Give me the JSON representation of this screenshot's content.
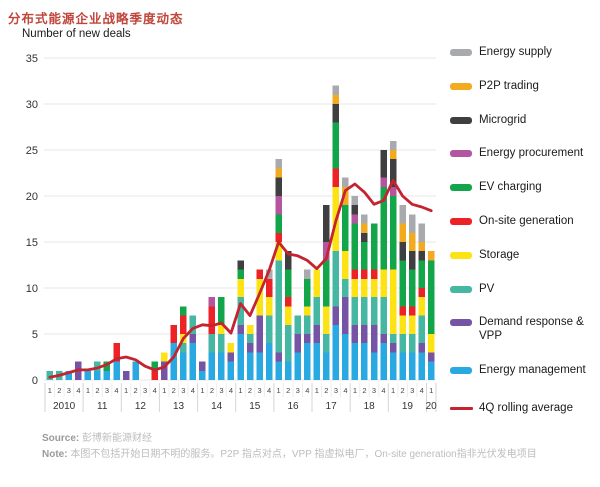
{
  "page": {
    "title": "分布式能源企业战略季度动态",
    "subtitle": "Number of new deals"
  },
  "footer": {
    "source_label": "Source:",
    "source_text": "彭博新能源财经",
    "note_label": "Note:",
    "note_text": "本图不包括开始日期不明的服务。P2P 指点对点，VPP 指虚拟电厂，On-site generation指非光伏发电项目"
  },
  "chart_data": {
    "type": "bar",
    "stacked": true,
    "title": "分布式能源企业战略季度动态",
    "ylabel": "Number of new deals",
    "xlabel": "",
    "ylim": [
      0,
      35
    ],
    "yticks": [
      0,
      5,
      10,
      15,
      20,
      25,
      30,
      35
    ],
    "grid": true,
    "legend_position": "right",
    "quarter_labels": [
      "1",
      "2",
      "3",
      "4",
      "1",
      "2",
      "3",
      "4",
      "1",
      "2",
      "3",
      "4",
      "1",
      "2",
      "3",
      "4",
      "1",
      "2",
      "3",
      "4",
      "1",
      "2",
      "3",
      "4",
      "1",
      "2",
      "3",
      "4",
      "1",
      "2",
      "3",
      "4",
      "1",
      "2",
      "3",
      "4",
      "1",
      "2",
      "3",
      "4",
      "1"
    ],
    "year_groups": [
      {
        "label": "2010",
        "quarters": 4
      },
      {
        "label": "11",
        "quarters": 4
      },
      {
        "label": "12",
        "quarters": 4
      },
      {
        "label": "13",
        "quarters": 4
      },
      {
        "label": "14",
        "quarters": 4
      },
      {
        "label": "15",
        "quarters": 4
      },
      {
        "label": "16",
        "quarters": 4
      },
      {
        "label": "17",
        "quarters": 4
      },
      {
        "label": "18",
        "quarters": 4
      },
      {
        "label": "19",
        "quarters": 4
      },
      {
        "label": "20",
        "quarters": 1
      }
    ],
    "series": [
      {
        "name": "Energy management",
        "color": "#29a9e1",
        "values": [
          0,
          0,
          1,
          0,
          1,
          1,
          1,
          2,
          0,
          2,
          0,
          0,
          0,
          4,
          3,
          4,
          1,
          3,
          3,
          2,
          5,
          3,
          3,
          4,
          2,
          2,
          3,
          4,
          4,
          3,
          6,
          5,
          4,
          4,
          3,
          4,
          3,
          3,
          3,
          3,
          2
        ]
      },
      {
        "name": "Demand response & VPP",
        "color": "#7553a5",
        "values": [
          0,
          0,
          0,
          2,
          0,
          0,
          0,
          0,
          1,
          0,
          0,
          0,
          2,
          0,
          0,
          1,
          1,
          0,
          0,
          1,
          1,
          1,
          4,
          0,
          1,
          0,
          2,
          1,
          2,
          0,
          2,
          4,
          2,
          2,
          3,
          1,
          1,
          0,
          0,
          1,
          1
        ]
      },
      {
        "name": "PV",
        "color": "#45b7a3",
        "values": [
          1,
          1,
          0,
          0,
          0,
          1,
          0,
          0,
          0,
          0,
          0,
          0,
          0,
          0,
          1,
          2,
          0,
          2,
          2,
          0,
          3,
          1,
          0,
          3,
          10,
          4,
          2,
          2,
          3,
          2,
          6,
          2,
          3,
          3,
          3,
          4,
          1,
          2,
          2,
          3,
          0
        ]
      },
      {
        "name": "Storage",
        "color": "#fde314",
        "values": [
          0,
          0,
          0,
          0,
          0,
          0,
          0,
          0,
          0,
          0,
          0,
          0,
          1,
          0,
          1,
          0,
          0,
          0,
          1,
          1,
          2,
          1,
          4,
          2,
          2,
          2,
          0,
          1,
          3,
          3,
          7,
          3,
          2,
          2,
          2,
          3,
          7,
          2,
          2,
          2,
          2
        ]
      },
      {
        "name": "On-site generation",
        "color": "#ec2227",
        "values": [
          0,
          0,
          0,
          0,
          0,
          0,
          0,
          2,
          0,
          0,
          0,
          1,
          0,
          2,
          2,
          0,
          0,
          3,
          0,
          0,
          0,
          0,
          1,
          2,
          1,
          1,
          0,
          0,
          0,
          0,
          2,
          0,
          1,
          1,
          1,
          0,
          0,
          1,
          1,
          1,
          0
        ]
      },
      {
        "name": "EV charging",
        "color": "#13a549",
        "values": [
          0,
          0,
          0,
          0,
          0,
          0,
          1,
          0,
          0,
          0,
          0,
          1,
          0,
          0,
          1,
          0,
          0,
          0,
          3,
          0,
          1,
          0,
          0,
          0,
          2,
          3,
          0,
          3,
          0,
          5,
          5,
          5,
          5,
          3,
          5,
          9,
          8,
          5,
          4,
          3,
          8
        ]
      },
      {
        "name": "Energy procurement",
        "color": "#b4559f",
        "values": [
          0,
          0,
          0,
          0,
          0,
          0,
          0,
          0,
          0,
          0,
          0,
          0,
          0,
          0,
          0,
          0,
          0,
          1,
          0,
          0,
          0,
          0,
          0,
          0,
          2,
          0,
          0,
          0,
          0,
          2,
          0,
          0,
          1,
          0,
          0,
          1,
          1,
          0,
          0,
          0,
          0
        ]
      },
      {
        "name": "Microgrid",
        "color": "#3f3f41",
        "values": [
          0,
          0,
          0,
          0,
          0,
          0,
          0,
          0,
          0,
          0,
          0,
          0,
          0,
          0,
          0,
          0,
          0,
          0,
          0,
          0,
          1,
          0,
          0,
          0,
          2,
          2,
          0,
          0,
          0,
          4,
          2,
          0,
          1,
          1,
          0,
          3,
          3,
          2,
          2,
          1,
          0
        ]
      },
      {
        "name": "P2P trading",
        "color": "#f2ab1f",
        "values": [
          0,
          0,
          0,
          0,
          0,
          0,
          0,
          0,
          0,
          0,
          0,
          0,
          0,
          0,
          0,
          0,
          0,
          0,
          0,
          0,
          0,
          0,
          0,
          0,
          1,
          0,
          0,
          0,
          0,
          0,
          1,
          2,
          0,
          1,
          0,
          0,
          1,
          2,
          2,
          1,
          1
        ]
      },
      {
        "name": "Energy supply",
        "color": "#a8aaad",
        "values": [
          0,
          0,
          0,
          0,
          0,
          0,
          0,
          0,
          0,
          0,
          0,
          0,
          0,
          0,
          0,
          0,
          0,
          0,
          0,
          0,
          0,
          0,
          0,
          1,
          1,
          0,
          0,
          1,
          0,
          0,
          1,
          1,
          1,
          1,
          0,
          0,
          1,
          2,
          2,
          2,
          0
        ]
      }
    ],
    "line": {
      "name": "4Q rolling average",
      "color": "#c42330",
      "values": [
        0.3,
        0.5,
        0.8,
        1.1,
        1.1,
        1.3,
        1.7,
        2.3,
        2.5,
        2.2,
        1.5,
        1.1,
        1.4,
        2.5,
        4.5,
        5.6,
        6.0,
        5.9,
        6.2,
        5.1,
        8.3,
        7.0,
        9.4,
        11.9,
        15.0,
        13.7,
        13.5,
        13.0,
        12.1,
        13.2,
        17.3,
        20.6,
        21.3,
        20.4,
        19.1,
        19.5,
        21.7,
        20.0,
        19.1,
        18.8,
        18.4
      ]
    }
  }
}
